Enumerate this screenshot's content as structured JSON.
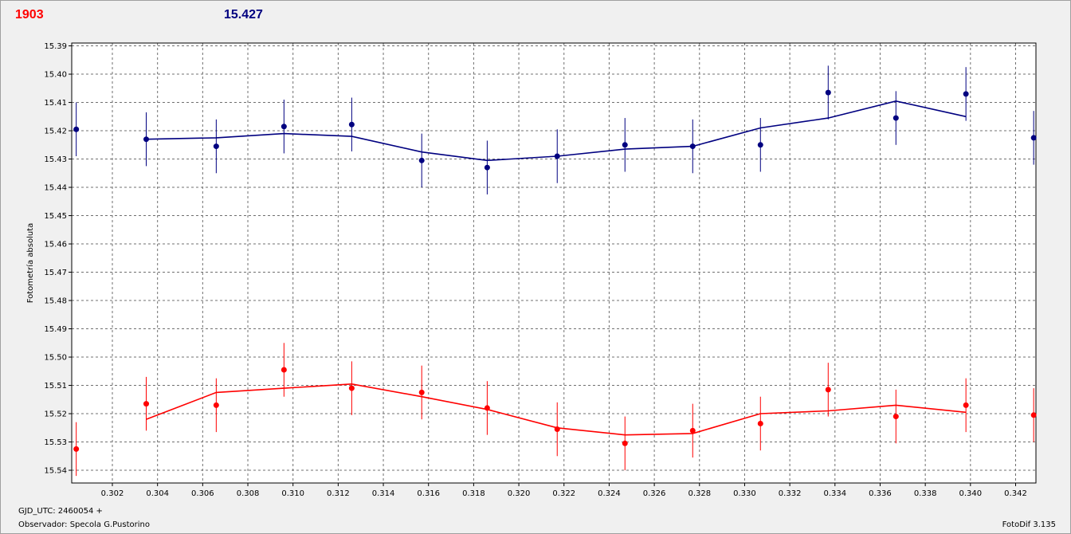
{
  "header": {
    "left_value": "1903",
    "right_value": "15.427",
    "left_color": "#ff0000",
    "right_color": "#000080"
  },
  "footer": {
    "gjd_label": "GJD_UTC: 2460054 +",
    "observer_label": "Observador: Specola G.Pustorino",
    "software_label": "FotoDif 3.135"
  },
  "chart_data": {
    "type": "scatter",
    "ylabel": "Fotometría absoluta",
    "xlabel": "",
    "xlim": [
      0.3002,
      0.3429
    ],
    "ylim": [
      15.389,
      15.5445
    ],
    "y_inverted": true,
    "grid": true,
    "x_ticks": [
      "0.302",
      "0.304",
      "0.306",
      "0.308",
      "0.310",
      "0.312",
      "0.314",
      "0.316",
      "0.318",
      "0.320",
      "0.322",
      "0.324",
      "0.326",
      "0.328",
      "0.330",
      "0.332",
      "0.334",
      "0.336",
      "0.338",
      "0.340",
      "0.342"
    ],
    "y_ticks": [
      "15.39",
      "15.40",
      "15.41",
      "15.42",
      "15.43",
      "15.44",
      "15.45",
      "15.46",
      "15.47",
      "15.48",
      "15.49",
      "15.50",
      "15.51",
      "15.52",
      "15.53",
      "15.54"
    ],
    "x": [
      0.3004,
      0.3035,
      0.3066,
      0.3096,
      0.3126,
      0.3157,
      0.3186,
      0.3217,
      0.3247,
      0.3277,
      0.3307,
      0.3337,
      0.3367,
      0.3398,
      0.3428
    ],
    "series": [
      {
        "color": "#000080",
        "values": [
          15.4195,
          15.423,
          15.4255,
          15.4185,
          15.4178,
          15.4305,
          15.433,
          15.429,
          15.425,
          15.4255,
          15.425,
          15.4065,
          15.4155,
          15.407,
          15.4225
        ],
        "errors": [
          0.0095,
          0.0095,
          0.0095,
          0.0095,
          0.0095,
          0.0095,
          0.0095,
          0.0095,
          0.0095,
          0.0095,
          0.0095,
          0.0095,
          0.0095,
          0.0095,
          0.0095
        ],
        "trend_x": [
          0.3035,
          0.3066,
          0.3096,
          0.3126,
          0.3157,
          0.3186,
          0.3217,
          0.3247,
          0.3277,
          0.3307,
          0.3337,
          0.3367,
          0.3398
        ],
        "trend_y": [
          15.423,
          15.4225,
          15.421,
          15.422,
          15.4275,
          15.4305,
          15.429,
          15.4265,
          15.4255,
          15.419,
          15.4155,
          15.4095,
          15.415
        ]
      },
      {
        "color": "#ff0000",
        "values": [
          15.5325,
          15.5165,
          15.517,
          15.5045,
          15.511,
          15.5125,
          15.518,
          15.5255,
          15.5305,
          15.526,
          15.5235,
          15.5115,
          15.521,
          15.517,
          15.5205
        ],
        "errors": [
          0.0095,
          0.0095,
          0.0095,
          0.0095,
          0.0095,
          0.0095,
          0.0095,
          0.0095,
          0.0095,
          0.0095,
          0.0095,
          0.0095,
          0.0095,
          0.0095,
          0.0095
        ],
        "trend_x": [
          0.3035,
          0.3066,
          0.3096,
          0.3126,
          0.3157,
          0.3186,
          0.3217,
          0.3247,
          0.3277,
          0.3307,
          0.3337,
          0.3367,
          0.3398
        ],
        "trend_y": [
          15.522,
          15.5125,
          15.511,
          15.5095,
          15.514,
          15.5185,
          15.525,
          15.5275,
          15.527,
          15.52,
          15.519,
          15.517,
          15.5195
        ]
      }
    ]
  }
}
